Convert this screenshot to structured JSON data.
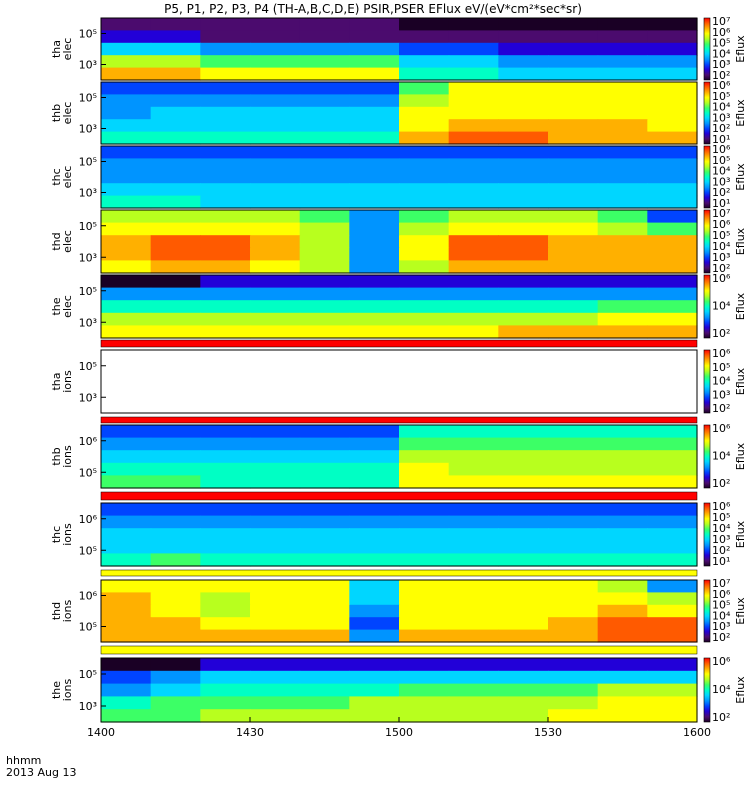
{
  "title": "P5, P1, P2, P3, P4 (TH-A,B,C,D,E) PSIR,PSER EFlux eV/(eV*cm²*sec*sr)",
  "footer": {
    "label_line1": "hhmm",
    "label_line2": "2013 Aug 13"
  },
  "colors": {
    "colormap": [
      "#1a0025",
      "#4b0b6e",
      "#2200d8",
      "#0044ff",
      "#0094ff",
      "#00d6ff",
      "#00ffc4",
      "#3cff66",
      "#b8ff1e",
      "#ffff00",
      "#ffb000",
      "#ff5a00",
      "#ff0000"
    ],
    "flag_red": "#ff0000",
    "flag_yellow": "#ffff00",
    "fill_gap": "#000000"
  },
  "chart_data": {
    "type": "heatmap",
    "xlabel": "hhmm",
    "x_ticks": [
      "1400",
      "1430",
      "1500",
      "1530",
      "1600"
    ],
    "xlim": [
      "14:00",
      "16:00"
    ],
    "panels": [
      {
        "id": "tha_elec",
        "ylabel": [
          "tha",
          "elec"
        ],
        "yticks": [
          "10⁵",
          "10³"
        ],
        "cbar_label": "Eflux",
        "cbar_ticks": [
          "10⁷",
          "10⁶",
          "10⁵",
          "10⁴",
          "10³",
          "10²"
        ],
        "grid": [
          [
            1,
            1,
            1,
            1,
            1,
            1,
            0,
            0,
            0,
            0,
            0,
            0
          ],
          [
            2,
            2,
            1,
            1,
            1,
            1,
            1,
            1,
            1,
            1,
            1,
            1
          ],
          [
            5,
            5,
            4,
            4,
            4,
            4,
            3,
            3,
            2,
            2,
            2,
            2
          ],
          [
            8,
            8,
            7,
            7,
            7,
            7,
            5,
            5,
            4,
            4,
            4,
            4
          ],
          [
            10,
            10,
            9,
            9,
            9,
            9,
            6,
            6,
            5,
            5,
            5,
            5
          ]
        ]
      },
      {
        "id": "thb_elec",
        "ylabel": [
          "thb",
          "elec"
        ],
        "yticks": [
          "10⁵",
          "10³"
        ],
        "cbar_label": "Eflux",
        "cbar_ticks": [
          "10⁶",
          "10⁵",
          "10⁴",
          "10³",
          "10²",
          "10¹"
        ],
        "grid": [
          [
            3,
            3,
            3,
            3,
            3,
            3,
            7,
            9,
            9,
            9,
            9,
            9
          ],
          [
            4,
            4,
            4,
            4,
            4,
            4,
            8,
            9,
            9,
            9,
            9,
            9
          ],
          [
            4,
            5,
            5,
            5,
            5,
            5,
            9,
            9,
            9,
            9,
            9,
            9
          ],
          [
            5,
            5,
            5,
            5,
            5,
            5,
            9,
            10,
            10,
            10,
            10,
            9
          ],
          [
            6,
            6,
            6,
            6,
            6,
            6,
            10,
            11,
            11,
            10,
            10,
            10
          ]
        ]
      },
      {
        "id": "thc_elec",
        "ylabel": [
          "thc",
          "elec"
        ],
        "yticks": [
          "10⁵",
          "10³"
        ],
        "cbar_label": "Eflux",
        "cbar_ticks": [
          "10⁶",
          "10⁵",
          "10⁴",
          "10³",
          "10²",
          "10¹"
        ],
        "grid": [
          [
            3,
            3,
            3,
            3,
            3,
            3,
            3,
            3,
            3,
            3,
            3,
            3
          ],
          [
            4,
            4,
            4,
            4,
            4,
            4,
            4,
            4,
            4,
            4,
            4,
            4
          ],
          [
            4,
            4,
            4,
            4,
            4,
            4,
            4,
            4,
            4,
            4,
            4,
            4
          ],
          [
            5,
            5,
            5,
            5,
            5,
            5,
            5,
            5,
            5,
            5,
            5,
            5
          ],
          [
            6,
            6,
            5,
            5,
            5,
            5,
            5,
            5,
            5,
            5,
            5,
            5
          ]
        ]
      },
      {
        "id": "thd_elec",
        "ylabel": [
          "thd",
          "elec"
        ],
        "yticks": [
          "10⁵",
          "10³"
        ],
        "cbar_label": "Eflux",
        "cbar_ticks": [
          "10⁷",
          "10⁶",
          "10⁵",
          "10⁴",
          "10³",
          "10²"
        ],
        "grid": [
          [
            8,
            8,
            8,
            8,
            7,
            4,
            7,
            8,
            8,
            8,
            7,
            3
          ],
          [
            9,
            9,
            9,
            9,
            8,
            4,
            8,
            9,
            9,
            9,
            8,
            7
          ],
          [
            10,
            11,
            11,
            10,
            8,
            4,
            9,
            11,
            11,
            10,
            10,
            10
          ],
          [
            10,
            11,
            11,
            10,
            8,
            4,
            9,
            11,
            11,
            10,
            10,
            10
          ],
          [
            9,
            10,
            10,
            9,
            8,
            4,
            8,
            10,
            10,
            10,
            10,
            10
          ]
        ]
      },
      {
        "id": "the_elec",
        "ylabel": [
          "the",
          "elec"
        ],
        "yticks": [
          "10⁵",
          "10³"
        ],
        "cbar_label": "Eflux",
        "cbar_ticks": [
          "10⁶",
          "10⁴",
          "10²"
        ],
        "grid": [
          [
            0,
            0,
            2,
            2,
            2,
            2,
            2,
            2,
            2,
            2,
            2,
            2
          ],
          [
            4,
            4,
            4,
            4,
            4,
            4,
            4,
            4,
            4,
            4,
            4,
            4
          ],
          [
            6,
            6,
            6,
            6,
            6,
            6,
            6,
            6,
            6,
            6,
            7,
            7
          ],
          [
            8,
            8,
            8,
            8,
            8,
            8,
            8,
            8,
            8,
            8,
            9,
            9
          ],
          [
            9,
            9,
            9,
            9,
            9,
            9,
            9,
            9,
            10,
            10,
            10,
            10
          ]
        ]
      },
      {
        "id": "tha_ions",
        "ylabel": [
          "tha",
          "ions"
        ],
        "yticks": [
          "10⁵",
          "10³"
        ],
        "cbar_label": "Eflux",
        "cbar_ticks": [
          "10⁶",
          "10⁵",
          "10⁴",
          "10³",
          "10²"
        ],
        "grid": []
      },
      {
        "id": "thb_ions",
        "ylabel": [
          "thb",
          "ions"
        ],
        "yticks": [
          "10⁶",
          "10⁵"
        ],
        "cbar_label": "Eflux",
        "cbar_ticks": [
          "10⁶",
          "10⁴",
          "10²"
        ],
        "grid": [
          [
            3,
            3,
            3,
            3,
            3,
            3,
            6,
            6,
            6,
            6,
            6,
            6
          ],
          [
            4,
            4,
            4,
            4,
            4,
            4,
            7,
            7,
            7,
            7,
            7,
            7
          ],
          [
            5,
            5,
            5,
            5,
            5,
            5,
            8,
            8,
            8,
            8,
            8,
            8
          ],
          [
            6,
            6,
            6,
            6,
            6,
            6,
            9,
            8,
            8,
            8,
            8,
            8
          ],
          [
            7,
            7,
            6,
            6,
            6,
            6,
            9,
            9,
            9,
            9,
            9,
            9
          ]
        ]
      },
      {
        "id": "thc_ions",
        "ylabel": [
          "thc",
          "ions"
        ],
        "yticks": [
          "10⁶",
          "10⁵"
        ],
        "cbar_label": "Eflux",
        "cbar_ticks": [
          "10⁶",
          "10⁵",
          "10⁴",
          "10³",
          "10²",
          "10¹"
        ],
        "grid": [
          [
            3,
            3,
            3,
            3,
            3,
            3,
            3,
            3,
            3,
            3,
            3,
            3
          ],
          [
            4,
            4,
            4,
            4,
            4,
            4,
            4,
            4,
            4,
            4,
            4,
            4
          ],
          [
            5,
            5,
            5,
            5,
            5,
            5,
            5,
            5,
            5,
            5,
            5,
            5
          ],
          [
            5,
            5,
            5,
            5,
            5,
            5,
            5,
            5,
            5,
            5,
            5,
            5
          ],
          [
            6,
            7,
            6,
            6,
            6,
            6,
            6,
            6,
            6,
            6,
            6,
            6
          ]
        ]
      },
      {
        "id": "thd_ions",
        "ylabel": [
          "thd",
          "ions"
        ],
        "yticks": [
          "10⁶",
          "10⁵"
        ],
        "cbar_label": "Eflux",
        "cbar_ticks": [
          "10⁷",
          "10⁶",
          "10⁵",
          "10⁴",
          "10³",
          "10²"
        ],
        "grid": [
          [
            9,
            9,
            9,
            9,
            9,
            5,
            9,
            9,
            9,
            9,
            8,
            4
          ],
          [
            10,
            9,
            8,
            9,
            9,
            5,
            9,
            9,
            9,
            9,
            9,
            8
          ],
          [
            10,
            9,
            8,
            9,
            9,
            4,
            9,
            9,
            9,
            9,
            10,
            9
          ],
          [
            10,
            10,
            9,
            9,
            9,
            3,
            9,
            9,
            9,
            10,
            11,
            11
          ],
          [
            10,
            10,
            10,
            10,
            10,
            4,
            10,
            10,
            10,
            10,
            11,
            11
          ]
        ]
      },
      {
        "id": "the_ions",
        "ylabel": [
          "the",
          "ions"
        ],
        "yticks": [
          "10⁵",
          "10³"
        ],
        "cbar_label": "Eflux",
        "cbar_ticks": [
          "10⁶",
          "10⁴",
          "10²"
        ],
        "grid": [
          [
            0,
            0,
            2,
            2,
            2,
            2,
            2,
            2,
            2,
            2,
            2,
            2
          ],
          [
            3,
            4,
            5,
            5,
            5,
            5,
            5,
            5,
            5,
            5,
            5,
            5
          ],
          [
            4,
            5,
            6,
            6,
            6,
            6,
            7,
            7,
            7,
            7,
            8,
            8
          ],
          [
            6,
            7,
            7,
            7,
            7,
            8,
            8,
            8,
            8,
            8,
            9,
            9
          ],
          [
            7,
            7,
            8,
            8,
            8,
            8,
            8,
            8,
            8,
            9,
            9,
            9
          ]
        ]
      }
    ]
  }
}
